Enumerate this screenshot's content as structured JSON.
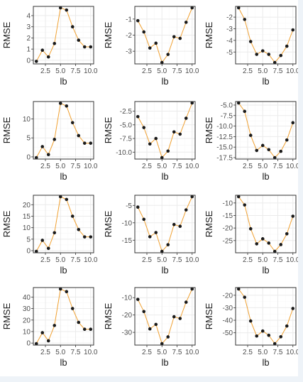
{
  "chart_data": [
    {
      "type": "line",
      "xlabel": "lb",
      "ylabel": "RMSE",
      "xlim": [
        0.5,
        10.5
      ],
      "ylim": [
        -0.2,
        4.7
      ],
      "xticks": [
        2.5,
        5.0,
        7.5,
        10.0
      ],
      "xtick_labels": [
        "2.5",
        "5.0",
        "7.5",
        "10.0"
      ],
      "yticks": [
        0,
        1,
        2,
        3,
        4
      ],
      "ytick_labels": [
        "0",
        "1",
        "2",
        "3",
        "4"
      ],
      "x": [
        1,
        2,
        3,
        4,
        5,
        6,
        7,
        8,
        9,
        10
      ],
      "values": [
        -0.1,
        0.9,
        0.3,
        1.5,
        4.7,
        4.5,
        3.0,
        1.8,
        1.2,
        1.2
      ]
    },
    {
      "type": "line",
      "xlabel": "lb",
      "ylabel": "RMSE",
      "xlim": [
        0.5,
        10.5
      ],
      "ylim": [
        -3.7,
        -0.3
      ],
      "xticks": [
        2.5,
        5.0,
        7.5,
        10.0
      ],
      "xtick_labels": [
        "2.5",
        "5.0",
        "7.5",
        "10.0"
      ],
      "yticks": [
        -3,
        -2,
        -1
      ],
      "ytick_labels": [
        "-3",
        "-2",
        "-1"
      ],
      "x": [
        1,
        2,
        3,
        4,
        5,
        6,
        7,
        8,
        9,
        10
      ],
      "values": [
        -1.1,
        -1.8,
        -2.8,
        -2.5,
        -3.7,
        -3.2,
        -2.1,
        -2.2,
        -1.2,
        -0.3
      ]
    },
    {
      "type": "line",
      "xlabel": "lb",
      "ylabel": "RMSE",
      "xlim": [
        0.5,
        10.5
      ],
      "ylim": [
        -5.9,
        -1.2
      ],
      "xticks": [
        2.5,
        5.0,
        7.5,
        10.0
      ],
      "xtick_labels": [
        "2.5",
        "5.0",
        "7.5",
        "10.0"
      ],
      "yticks": [
        -5,
        -4,
        -3,
        -2
      ],
      "ytick_labels": [
        "-5",
        "-4",
        "-3",
        "-2"
      ],
      "x": [
        1,
        2,
        3,
        4,
        5,
        6,
        7,
        8,
        9,
        10
      ],
      "values": [
        -1.2,
        -2.2,
        -4.1,
        -5.2,
        -4.9,
        -5.2,
        -5.9,
        -5.3,
        -4.5,
        -3.1
      ]
    },
    {
      "type": "line",
      "xlabel": "lb",
      "ylabel": "RMSE",
      "xlim": [
        0.5,
        10.5
      ],
      "ylim": [
        -0.2,
        14.2
      ],
      "xticks": [
        2.5,
        5.0,
        7.5,
        10.0
      ],
      "xtick_labels": [
        "2.5",
        "5.0",
        "7.5",
        "10.0"
      ],
      "yticks": [
        0,
        5,
        10
      ],
      "ytick_labels": [
        "0",
        "5",
        "10"
      ],
      "x": [
        1,
        2,
        3,
        4,
        5,
        6,
        7,
        8,
        9,
        10
      ],
      "values": [
        -0.2,
        2.7,
        0.6,
        4.6,
        14.1,
        13.4,
        9.0,
        5.6,
        3.6,
        3.6
      ]
    },
    {
      "type": "line",
      "xlabel": "lb",
      "ylabel": "RMSE",
      "xlim": [
        0.5,
        10.5
      ],
      "ylim": [
        -11.0,
        -1.0
      ],
      "xticks": [
        2.5,
        5.0,
        7.5,
        10.0
      ],
      "xtick_labels": [
        "2.5",
        "5.0",
        "7.5",
        "10.0"
      ],
      "yticks": [
        -10,
        -7.5,
        -5,
        -2.5
      ],
      "ytick_labels": [
        "-10.0",
        "-7.5",
        "-5.0",
        "-2.5"
      ],
      "x": [
        1,
        2,
        3,
        4,
        5,
        6,
        7,
        8,
        9,
        10
      ],
      "values": [
        -3.5,
        -5.5,
        -8.5,
        -7.5,
        -11.0,
        -9.8,
        -6.3,
        -6.7,
        -3.8,
        -1.0
      ]
    },
    {
      "type": "line",
      "xlabel": "lb",
      "ylabel": "RMSE",
      "xlim": [
        0.5,
        10.5
      ],
      "ylim": [
        -17.5,
        -4.5
      ],
      "xticks": [
        2.5,
        5.0,
        7.5,
        10.0
      ],
      "xtick_labels": [
        "2.5",
        "5.0",
        "7.5",
        "10.0"
      ],
      "yticks": [
        -17.5,
        -15,
        -12.5,
        -10,
        -7.5,
        -5
      ],
      "ytick_labels": [
        "-17.5",
        "-15.0",
        "-12.5",
        "-10.0",
        "-7.5",
        "-5.0"
      ],
      "x": [
        1,
        2,
        3,
        4,
        5,
        6,
        7,
        8,
        9,
        10
      ],
      "values": [
        -4.5,
        -6.5,
        -12.2,
        -15.8,
        -14.6,
        -15.6,
        -17.5,
        -16.0,
        -13.3,
        -9.2
      ]
    },
    {
      "type": "line",
      "xlabel": "lb",
      "ylabel": "RMSE",
      "xlim": [
        0.5,
        10.5
      ],
      "ylim": [
        -0.3,
        23.5
      ],
      "xticks": [
        2.5,
        5.0,
        7.5,
        10.0
      ],
      "xtick_labels": [
        "2.5",
        "5.0",
        "7.5",
        "10.0"
      ],
      "yticks": [
        0,
        5,
        10,
        15,
        20
      ],
      "ytick_labels": [
        "0",
        "5",
        "10",
        "15",
        "20"
      ],
      "x": [
        1,
        2,
        3,
        4,
        5,
        6,
        7,
        8,
        9,
        10
      ],
      "values": [
        -0.3,
        4.5,
        1.0,
        7.8,
        23.5,
        22.3,
        15.0,
        9.2,
        6.0,
        6.0
      ]
    },
    {
      "type": "line",
      "xlabel": "lb",
      "ylabel": "RMSE",
      "xlim": [
        0.5,
        10.5
      ],
      "ylim": [
        -18.2,
        -2.5
      ],
      "xticks": [
        2.5,
        5.0,
        7.5,
        10.0
      ],
      "xtick_labels": [
        "2.5",
        "5.0",
        "7.5",
        "10.0"
      ],
      "yticks": [
        -15,
        -10,
        -5
      ],
      "ytick_labels": [
        "-15",
        "-10",
        "-5"
      ],
      "x": [
        1,
        2,
        3,
        4,
        5,
        6,
        7,
        8,
        9,
        10
      ],
      "values": [
        -5.5,
        -9.0,
        -14.0,
        -12.8,
        -18.2,
        -16.3,
        -10.5,
        -11.0,
        -6.3,
        -2.5
      ]
    },
    {
      "type": "line",
      "xlabel": "lb",
      "ylabel": "RMSE",
      "xlim": [
        0.5,
        10.5
      ],
      "ylim": [
        -29.3,
        -7.5
      ],
      "xticks": [
        2.5,
        5.0,
        7.5,
        10.0
      ],
      "xtick_labels": [
        "2.5",
        "5.0",
        "7.5",
        "10.0"
      ],
      "yticks": [
        -25,
        -20,
        -15,
        -10
      ],
      "ytick_labels": [
        "-25",
        "-20",
        "-15",
        "-10"
      ],
      "x": [
        1,
        2,
        3,
        4,
        5,
        6,
        7,
        8,
        9,
        10
      ],
      "values": [
        -7.5,
        -10.8,
        -20.3,
        -26.3,
        -24.3,
        -26.0,
        -29.3,
        -26.6,
        -22.3,
        -15.3
      ]
    },
    {
      "type": "line",
      "xlabel": "lb",
      "ylabel": "RMSE",
      "xlim": [
        0.5,
        10.5
      ],
      "ylim": [
        -0.5,
        47.0
      ],
      "xticks": [
        2.5,
        5.0,
        7.5,
        10.0
      ],
      "xtick_labels": [
        "2.5",
        "5.0",
        "7.5",
        "10.0"
      ],
      "yticks": [
        0,
        10,
        20,
        30,
        40
      ],
      "ytick_labels": [
        "0",
        "10",
        "20",
        "30",
        "40"
      ],
      "x": [
        1,
        2,
        3,
        4,
        5,
        6,
        7,
        8,
        9,
        10
      ],
      "values": [
        -0.5,
        9.0,
        2.0,
        15.3,
        47.0,
        44.7,
        30.0,
        18.0,
        12.0,
        12.0
      ]
    },
    {
      "type": "line",
      "xlabel": "lb",
      "ylabel": "RMSE",
      "xlim": [
        0.5,
        10.5
      ],
      "ylim": [
        -36.5,
        -5.0
      ],
      "xticks": [
        2.5,
        5.0,
        7.5,
        10.0
      ],
      "xtick_labels": [
        "2.5",
        "5.0",
        "7.5",
        "10.0"
      ],
      "yticks": [
        -30,
        -20,
        -10
      ],
      "ytick_labels": [
        "-30",
        "-20",
        "-10"
      ],
      "x": [
        1,
        2,
        3,
        4,
        5,
        6,
        7,
        8,
        9,
        10
      ],
      "values": [
        -11.0,
        -18.0,
        -28.0,
        -25.4,
        -36.5,
        -32.6,
        -21.0,
        -22.0,
        -12.6,
        -5.0
      ]
    },
    {
      "type": "line",
      "xlabel": "lb",
      "ylabel": "RMSE",
      "xlim": [
        0.5,
        10.5
      ],
      "ylim": [
        -58.7,
        -15.0
      ],
      "xticks": [
        2.5,
        5.0,
        7.5,
        10.0
      ],
      "xtick_labels": [
        "2.5",
        "5.0",
        "7.5",
        "10.0"
      ],
      "yticks": [
        -50,
        -40,
        -30,
        -20
      ],
      "ytick_labels": [
        "-50",
        "-40",
        "-30",
        "-20"
      ],
      "x": [
        1,
        2,
        3,
        4,
        5,
        6,
        7,
        8,
        9,
        10
      ],
      "values": [
        -15.0,
        -21.6,
        -40.6,
        -52.6,
        -48.6,
        -52.0,
        -58.7,
        -53.2,
        -44.6,
        -30.6
      ]
    }
  ],
  "style": {
    "line_color": "#f0a030",
    "point_color": "#1a1a1a",
    "panel_border": "#333333",
    "grid_major": "#ebebeb",
    "grid_minor": "#f7f7f7",
    "text_color": "#1a1a1a",
    "tick_text_color": "#4d4d4d"
  }
}
